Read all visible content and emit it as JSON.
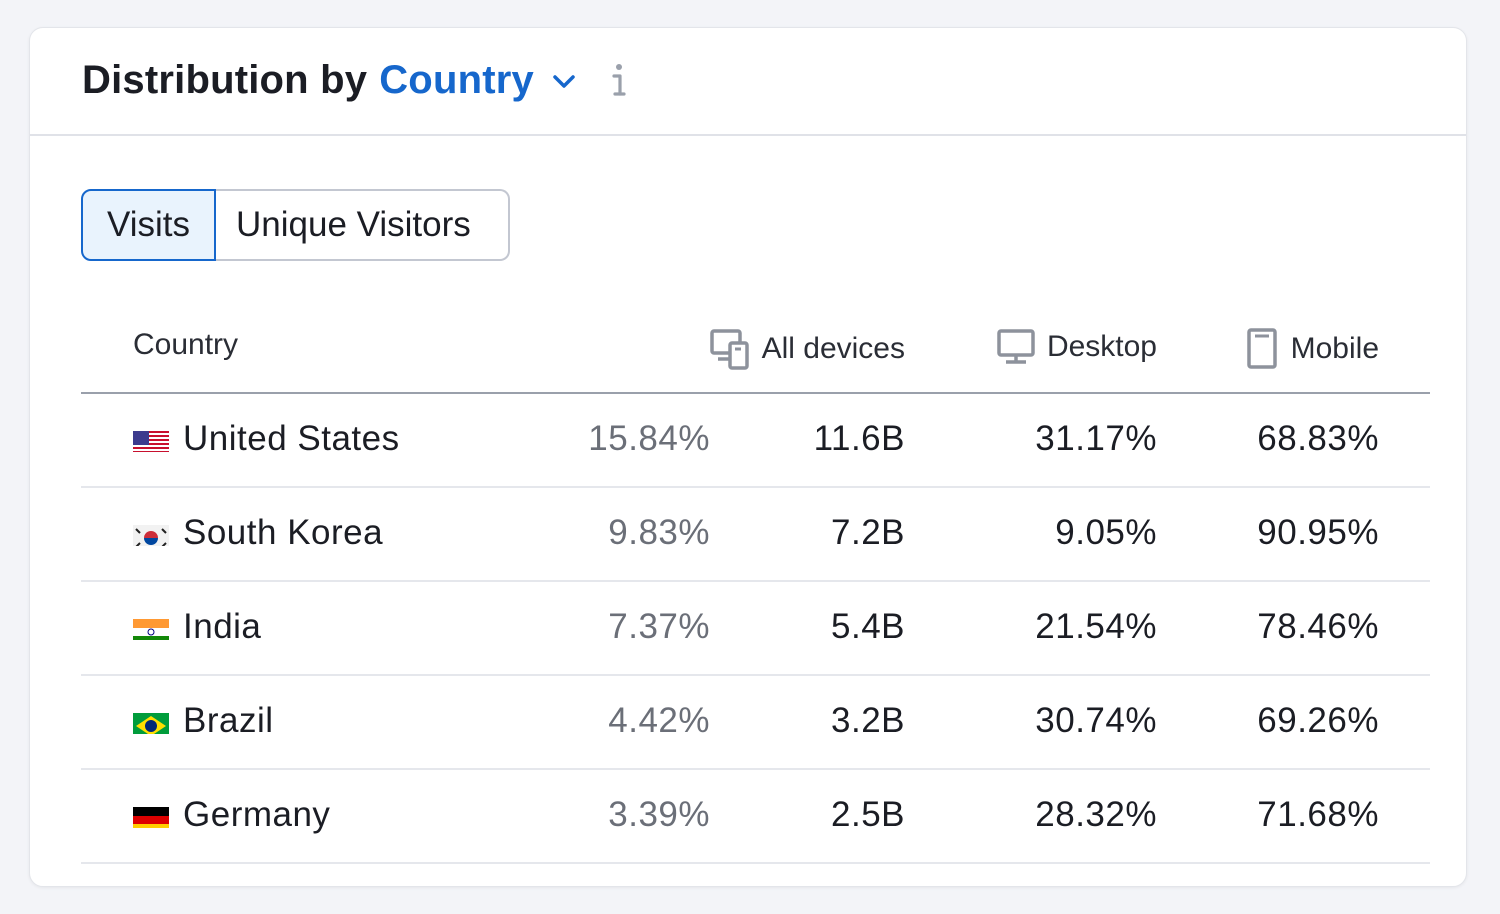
{
  "header": {
    "title_prefix": "Distribution by",
    "title_dimension": "Country",
    "accent_color": "#1667cc"
  },
  "tabs": [
    {
      "label": "Visits",
      "active": true
    },
    {
      "label": "Unique Visitors",
      "active": false
    }
  ],
  "table": {
    "columns": {
      "country": "Country",
      "all_devices": "All devices",
      "desktop": "Desktop",
      "mobile": "Mobile"
    },
    "rows": [
      {
        "country": "United States",
        "flag": "us-flag-icon",
        "share": "15.84%",
        "all_devices": "11.6B",
        "desktop": "31.17%",
        "mobile": "68.83%"
      },
      {
        "country": "South Korea",
        "flag": "kr-flag-icon",
        "share": "9.83%",
        "all_devices": "7.2B",
        "desktop": "9.05%",
        "mobile": "90.95%"
      },
      {
        "country": "India",
        "flag": "in-flag-icon",
        "share": "7.37%",
        "all_devices": "5.4B",
        "desktop": "21.54%",
        "mobile": "78.46%"
      },
      {
        "country": "Brazil",
        "flag": "br-flag-icon",
        "share": "4.42%",
        "all_devices": "3.2B",
        "desktop": "30.74%",
        "mobile": "69.26%"
      },
      {
        "country": "Germany",
        "flag": "de-flag-icon",
        "share": "3.39%",
        "all_devices": "2.5B",
        "desktop": "28.32%",
        "mobile": "71.68%"
      }
    ]
  }
}
